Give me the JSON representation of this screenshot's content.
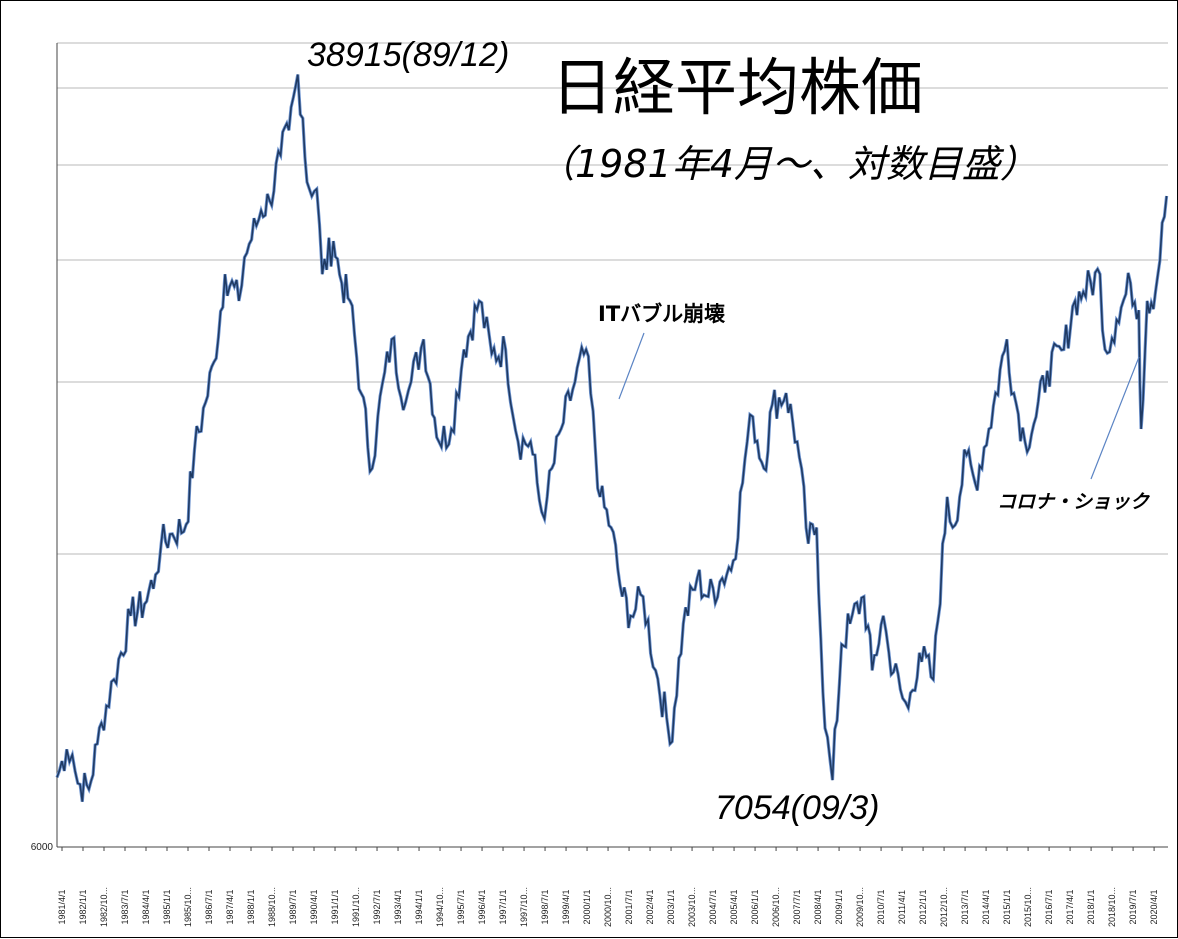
{
  "chart_data": {
    "type": "line",
    "title": "日経平均株価",
    "subtitle": "（1981年4月～、対数目盛）",
    "y_scale": "log",
    "ylim": [
      6000,
      42000
    ],
    "y_tick_labels": [
      "6000"
    ],
    "x_tick_labels": [
      "1981/4/1",
      "1982/1/1",
      "1982/10...",
      "1983/7/1",
      "1984/4/1",
      "1985/1/1",
      "1985/10...",
      "1986/7/1",
      "1987/4/1",
      "1988/1/1",
      "1988/10...",
      "1989/7/1",
      "1990/4/1",
      "1991/1/1",
      "1991/10...",
      "1992/7/1",
      "1993/4/1",
      "1994/1/1",
      "1994/10...",
      "1995/7/1",
      "1996/4/1",
      "1997/1/1",
      "1997/10...",
      "1998/7/1",
      "1999/4/1",
      "2000/1/1",
      "2000/10...",
      "2001/7/1",
      "2002/4/1",
      "2003/1/1",
      "2003/10...",
      "2004/7/1",
      "2005/4/1",
      "2006/1/1",
      "2006/10...",
      "2007/7/1",
      "2008/4/1",
      "2009/1/1",
      "2009/10...",
      "2010/7/1",
      "2011/4/1",
      "2012/1/1",
      "2012/10...",
      "2013/7/1",
      "2014/4/1",
      "2015/1/1",
      "2015/10...",
      "2016/7/1",
      "2017/4/1",
      "2018/1/1",
      "2018/10...",
      "2019/7/1",
      "2020/4/1"
    ],
    "grid": true,
    "line_color": "#1f3a63",
    "series": [
      {
        "x": [
          1981.25,
          1981.6,
          1981.8,
          1982.0,
          1982.4,
          1982.7,
          1982.85,
          1983.3,
          1983.9,
          1984.4,
          1984.8,
          1985.0,
          1985.4,
          1985.9,
          1986.2,
          1986.6,
          1986.9,
          1987.3,
          1987.8,
          1988.0,
          1988.6,
          1988.9,
          1989.3,
          1989.6,
          1989.92,
          1990.1,
          1990.25,
          1990.6,
          1990.8,
          1991.2,
          1991.5,
          1991.8,
          1992.2,
          1992.6,
          1992.8,
          1993.3,
          1993.8,
          1994.0,
          1994.45,
          1995.0,
          1995.45,
          1995.9,
          1996.45,
          1996.9,
          1997.4,
          1997.85,
          1998.3,
          1998.7,
          1998.9,
          1999.4,
          1999.9,
          2000.3,
          2000.8,
          2001.2,
          2001.6,
          2001.9,
          2002.35,
          2002.8,
          2003.2,
          2003.32,
          2003.8,
          2004.3,
          2004.7,
          2005.2,
          2005.6,
          2006.1,
          2006.3,
          2006.7,
          2007.0,
          2007.5,
          2007.9,
          2008.3,
          2008.6,
          2008.9,
          2009.17,
          2009.5,
          2009.8,
          2010.3,
          2010.6,
          2011.0,
          2011.2,
          2011.7,
          2011.9,
          2012.3,
          2012.8,
          2013.3,
          2013.5,
          2014.0,
          2014.3,
          2014.8,
          2015.45,
          2015.7,
          2016.1,
          2016.5,
          2016.9,
          2017.5,
          2017.9,
          2018.2,
          2018.8,
          2018.98,
          2019.4,
          2019.9,
          2020.2,
          2020.28,
          2020.5,
          2020.8,
          2021.2
        ],
        "y": [
          7100,
          7600,
          7500,
          7000,
          6900,
          7700,
          8100,
          9000,
          10500,
          10800,
          11600,
          12500,
          12800,
          13100,
          15700,
          17600,
          19400,
          24000,
          22500,
          25000,
          28000,
          28700,
          32000,
          34000,
          38915,
          35000,
          30000,
          29500,
          24000,
          26000,
          23500,
          22500,
          18000,
          15000,
          17000,
          20500,
          17600,
          18500,
          20500,
          16000,
          16500,
          20000,
          22500,
          19800,
          20000,
          16000,
          16000,
          13500,
          14000,
          16500,
          18500,
          20000,
          14000,
          13000,
          11000,
          10500,
          11000,
          9200,
          8200,
          7700,
          10300,
          11500,
          11000,
          11500,
          12000,
          16000,
          17000,
          15000,
          17500,
          18000,
          16000,
          12500,
          13000,
          8000,
          7054,
          9800,
          10300,
          11000,
          9200,
          10500,
          9600,
          8600,
          8400,
          9600,
          9000,
          14000,
          13000,
          15500,
          14500,
          16500,
          20500,
          18000,
          16000,
          17000,
          19000,
          20000,
          22500,
          23000,
          24000,
          20000,
          21500,
          23500,
          22000,
          16500,
          22500,
          23000,
          29000
        ]
      }
    ],
    "annotations": {
      "peak": "38915(89/12)",
      "trough": "7054(09/3)",
      "it_bubble": "ITバブル崩壊",
      "corona": "コロナ・ショック"
    }
  }
}
